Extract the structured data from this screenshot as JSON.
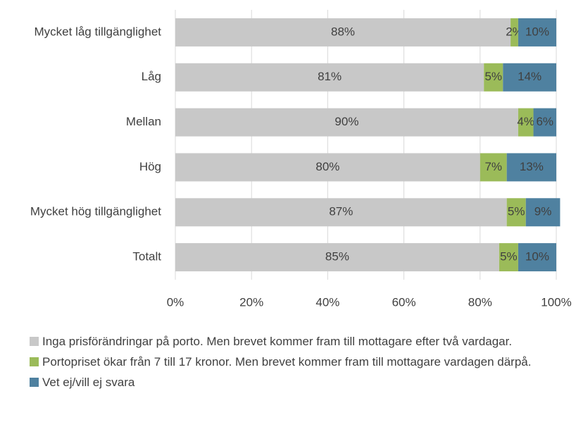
{
  "chart_data": {
    "type": "stacked-barh",
    "categories": [
      "Mycket låg tillgänglighet",
      "Låg",
      "Mellan",
      "Hög",
      "Mycket hög tillgänglighet",
      "Totalt"
    ],
    "series": [
      {
        "name": "Inga prisförändringar på porto. Men brevet kommer fram till mottagare efter två vardagar.",
        "color": "#c8c8c8",
        "values": [
          88,
          81,
          90,
          80,
          87,
          85
        ],
        "value_labels": [
          "88%",
          "81%",
          "90%",
          "80%",
          "87%",
          "85%"
        ]
      },
      {
        "name": "Portopriset ökar från 7 till 17 kronor. Men brevet kommer fram till mottagare vardagen därpå.",
        "color": "#9bbb59",
        "values": [
          2,
          5,
          4,
          7,
          5,
          5
        ],
        "value_labels": [
          "2%",
          "5%",
          "4%",
          "7%",
          "5%",
          "5%"
        ]
      },
      {
        "name": "Vet ej/vill ej svara",
        "color": "#4f81a0",
        "values": [
          10,
          14,
          6,
          13,
          9,
          10
        ],
        "value_labels": [
          "10%",
          "14%",
          "6%",
          "13%",
          "9%",
          "10%"
        ]
      }
    ],
    "xlim": [
      0,
      100
    ],
    "xticks": [
      {
        "value": 0,
        "label": "0%"
      },
      {
        "value": 20,
        "label": "20%"
      },
      {
        "value": 40,
        "label": "40%"
      },
      {
        "value": 60,
        "label": "60%"
      },
      {
        "value": 80,
        "label": "80%"
      },
      {
        "value": 100,
        "label": "100%"
      }
    ],
    "grid": true
  }
}
